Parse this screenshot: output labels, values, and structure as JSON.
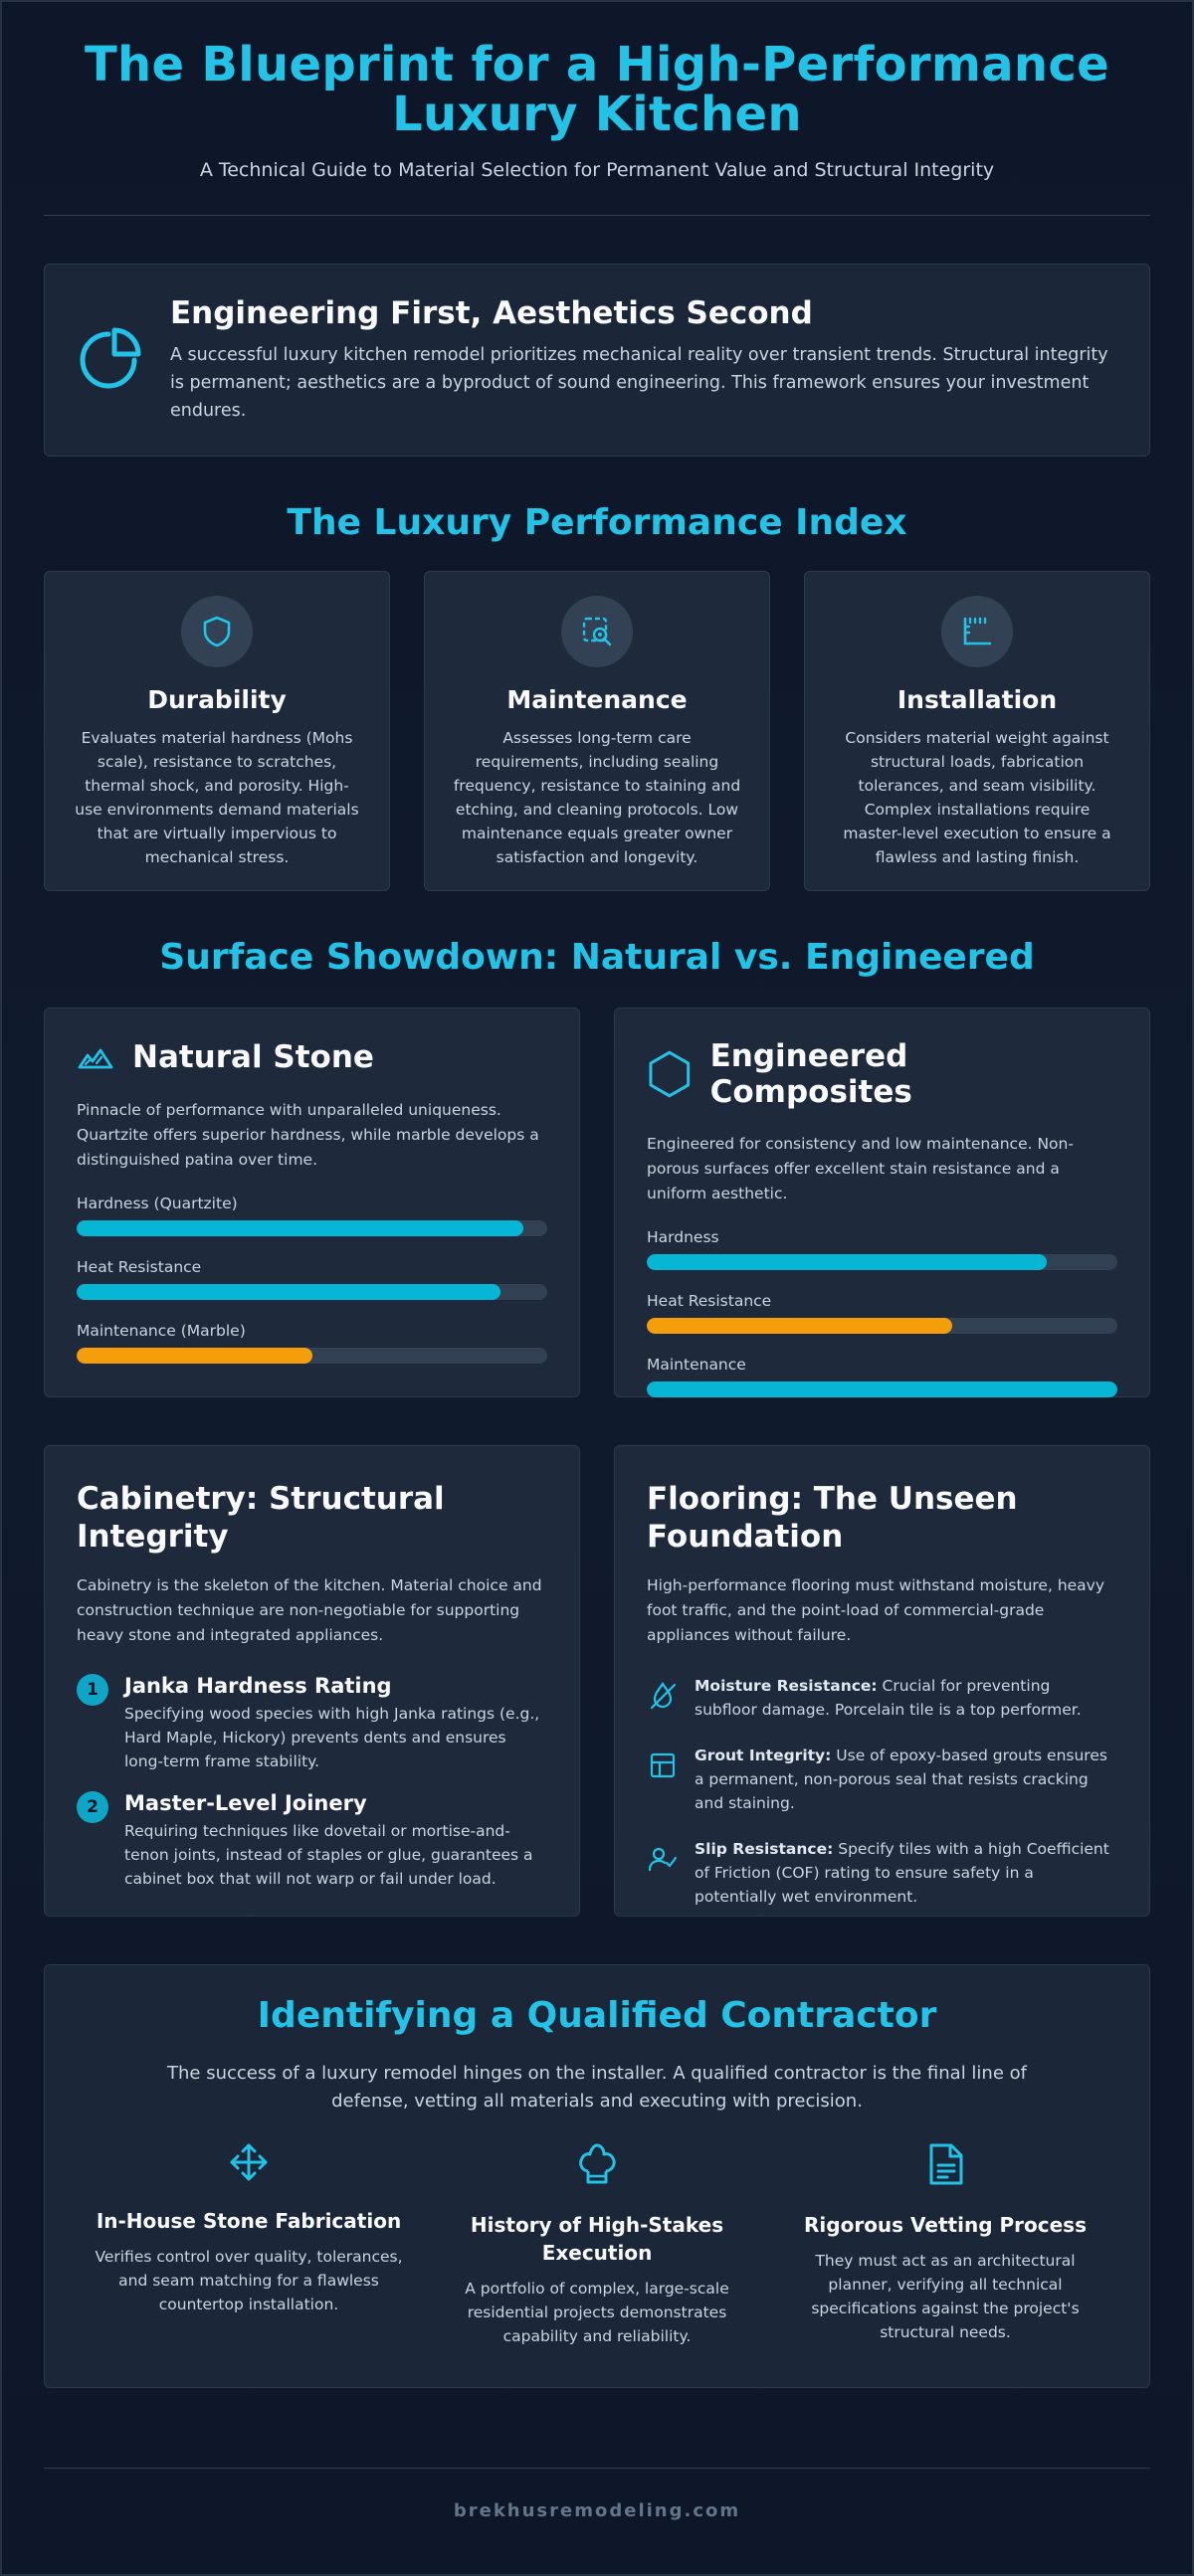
{
  "header": {
    "title_line1": "The Blueprint for a High-Performance",
    "title_line2": "Luxury Kitchen",
    "subtitle": "A Technical Guide to Material Selection for Permanent Value and Structural Integrity"
  },
  "intro": {
    "icon": "pie-chart-icon",
    "title": "Engineering First, Aesthetics Second",
    "text": "A successful luxury kitchen remodel prioritizes mechanical reality over transient trends. Structural integrity is permanent; aesthetics are a byproduct of sound engineering. This framework ensures your investment endures."
  },
  "index": {
    "title": "The Luxury Performance Index",
    "cards": [
      {
        "icon": "shield-icon",
        "title": "Durability",
        "text": "Evaluates material hardness (Mohs scale), resistance to scratches, thermal shock, and porosity. High-use environments demand materials that are virtually impervious to mechanical stress."
      },
      {
        "icon": "maintenance-gear-icon",
        "title": "Maintenance",
        "text": "Assesses long-term care requirements, including sealing frequency, resistance to staining and etching, and cleaning protocols. Low maintenance equals greater owner satisfaction and longevity."
      },
      {
        "icon": "ruler-icon",
        "title": "Installation",
        "text": "Considers material weight against structural loads, fabrication tolerances, and seam visibility. Complex installations require master-level execution to ensure a flawless and lasting finish."
      }
    ]
  },
  "surface": {
    "title": "Surface Showdown: Natural vs. Engineered",
    "natural": {
      "icon": "mountain-icon",
      "title": "Natural Stone",
      "text": "Pinnacle of performance with unparalleled uniqueness. Quartzite offers superior hardness, while marble develops a distinguished patina over time.",
      "bars": [
        {
          "label": "Hardness (Quartzite)",
          "value": 0.95,
          "color": "#06b6d4"
        },
        {
          "label": "Heat Resistance",
          "value": 0.9,
          "color": "#06b6d4"
        },
        {
          "label": "Maintenance (Marble)",
          "value": 0.5,
          "color": "#f59e0b"
        }
      ]
    },
    "engineered": {
      "icon": "hexagon-icon",
      "title": "Engineered Composites",
      "text": "Engineered for consistency and low maintenance. Non-porous surfaces offer excellent stain resistance and a uniform aesthetic.",
      "bars": [
        {
          "label": "Hardness",
          "value": 0.85,
          "color": "#06b6d4"
        },
        {
          "label": "Heat Resistance",
          "value": 0.65,
          "color": "#f59e0b"
        },
        {
          "label": "Maintenance",
          "value": 1.0,
          "color": "#06b6d4"
        }
      ]
    }
  },
  "cabinetry": {
    "title_line1": "Cabinetry: Structural",
    "title_line2": "Integrity",
    "text": "Cabinetry is the skeleton of the kitchen. Material choice and construction technique are non-negotiable for supporting heavy stone and integrated appliances.",
    "items": [
      {
        "num": "1",
        "title": "Janka Hardness Rating",
        "text": "Specifying wood species with high Janka ratings (e.g., Hard Maple, Hickory) prevents dents and ensures long-term frame stability."
      },
      {
        "num": "2",
        "title": "Master-Level Joinery",
        "text": "Requiring techniques like dovetail or mortise-and-tenon joints, instead of staples or glue, guarantees a cabinet box that will not warp or fail under load."
      }
    ]
  },
  "flooring": {
    "title_line1": "Flooring: The Unseen",
    "title_line2": "Foundation",
    "text": "High-performance flooring must withstand moisture, heavy foot traffic, and the point-load of commercial-grade appliances without failure.",
    "items": [
      {
        "icon": "droplet-off-icon",
        "label": "Moisture Resistance:",
        "text": " Crucial for preventing subfloor damage. Porcelain tile is a top performer."
      },
      {
        "icon": "grid-icon",
        "label": "Grout Integrity:",
        "text": " Use of epoxy-based grouts ensures a permanent, non-porous seal that resists cracking and staining."
      },
      {
        "icon": "user-check-icon",
        "label": "Slip Resistance:",
        "text": " Specify tiles with a high Coefficient of Friction (COF) rating to ensure safety in a potentially wet environment."
      }
    ]
  },
  "contractor": {
    "title": "Identifying a Qualified Contractor",
    "text": "The success of a luxury remodel hinges on the installer. A qualified contractor is the final line of defense, vetting all materials and executing with precision.",
    "cols": [
      {
        "icon": "move-arrows-icon",
        "title_line1": "In-House Stone Fabrication",
        "title_line2": "",
        "text": "Verifies control over quality, tolerances, and seam matching for a flawless countertop installation."
      },
      {
        "icon": "chef-hat-icon",
        "title_line1": "History of High-Stakes",
        "title_line2": "Execution",
        "text": "A portfolio of complex, large-scale residential projects demonstrates capability and reliability."
      },
      {
        "icon": "document-icon",
        "title_line1": "Rigorous Vetting Process",
        "title_line2": "",
        "text": "They must act as an architectural planner, verifying all technical specifications against the project's structural needs."
      }
    ]
  },
  "footer": {
    "text": "brekhusremodeling.com"
  },
  "colors": {
    "accent": "#22c3e6",
    "bar_cyan": "#06b6d4",
    "bar_orange": "#f59e0b",
    "background": "#0f172a",
    "card": "#1e293b"
  }
}
